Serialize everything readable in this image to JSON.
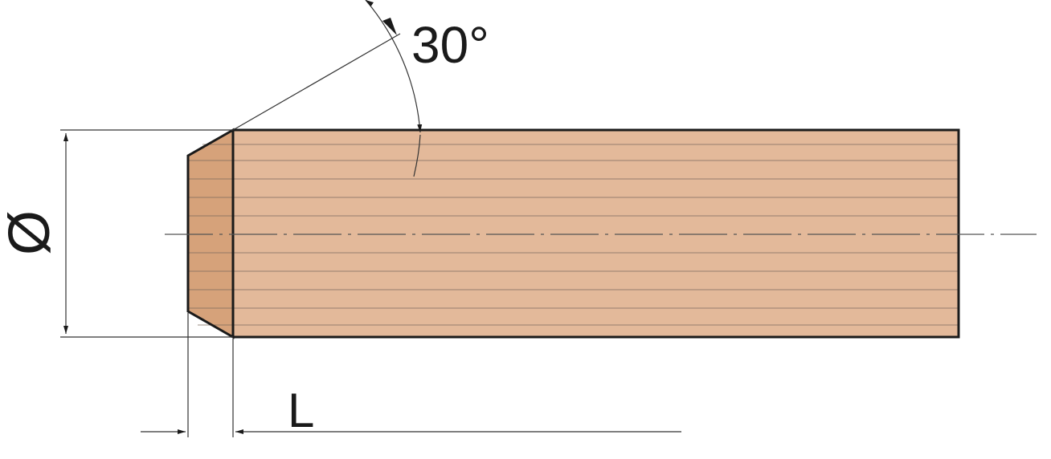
{
  "labels": {
    "angle": "30°",
    "diameter": "Ø",
    "length": "L"
  },
  "colors": {
    "body_fill": "#e3b99a",
    "chamfer_fill": "#d6a27a",
    "outline": "#1a1a1a",
    "grain": "#7a6a5e",
    "dim_line": "#333333"
  }
}
